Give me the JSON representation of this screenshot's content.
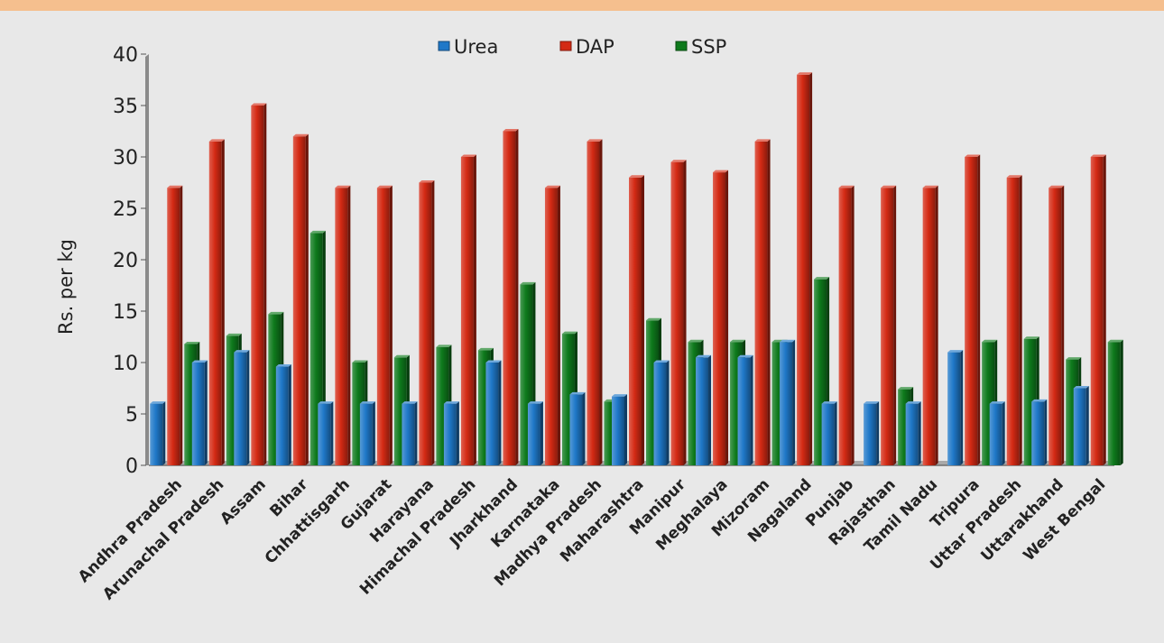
{
  "chart_data": {
    "type": "bar",
    "ylabel": "Rs. per kg",
    "ylim": [
      0,
      40
    ],
    "yticks": [
      0,
      5,
      10,
      15,
      20,
      25,
      30,
      35,
      40
    ],
    "legend_placement": "top-center",
    "categories": [
      "Andhra Pradesh",
      "Arunachal Pradesh",
      "Assam",
      "Bihar",
      "Chhattisgarh",
      "Gujarat",
      "Harayana",
      "Himachal Pradesh",
      "Jharkhand",
      "Karnataka",
      "Madhya Pradesh",
      "Maharashtra",
      "Manipur",
      "Meghalaya",
      "Mizoram",
      "Nagaland",
      "Punjab",
      "Rajasthan",
      "Tamil Nadu",
      "Tripura",
      "Uttar Pradesh",
      "Uttarakhand",
      "West Bengal"
    ],
    "series": [
      {
        "name": "Urea",
        "color": "#1f78c8",
        "values": [
          6,
          10,
          11,
          9.6,
          6,
          6,
          6,
          6,
          10,
          6,
          6.9,
          6.7,
          10,
          10.5,
          10.5,
          12,
          6,
          6,
          6,
          11,
          6,
          6.2,
          7.5
        ]
      },
      {
        "name": "DAP",
        "color": "#d42a14",
        "values": [
          27,
          31.5,
          35,
          32,
          27,
          27,
          27.5,
          30,
          32.5,
          27,
          31.5,
          28,
          29.5,
          28.5,
          31.5,
          38,
          27,
          27,
          27,
          30,
          28,
          27,
          30
        ]
      },
      {
        "name": "SSP",
        "color": "#0e7a1c",
        "values": [
          11.8,
          12.6,
          14.7,
          22.6,
          10,
          10.5,
          11.5,
          11.2,
          17.6,
          12.8,
          6.2,
          14.1,
          12,
          12,
          12,
          18.1,
          0,
          7.4,
          0,
          12,
          12.3,
          10.3,
          12
        ]
      }
    ]
  }
}
